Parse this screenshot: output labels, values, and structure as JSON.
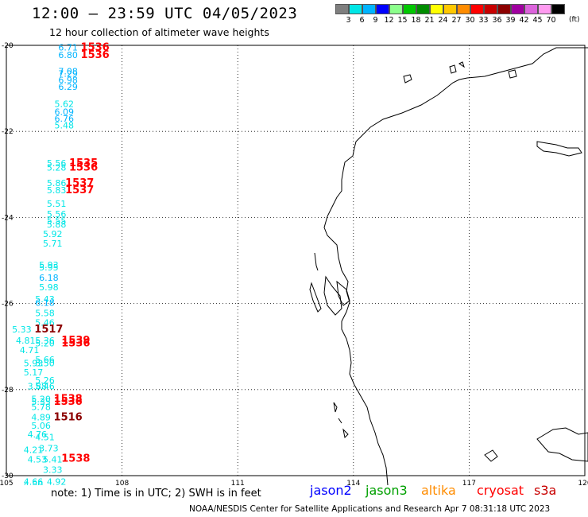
{
  "header": {
    "title": "12:00 — 23:59 UTC 04/05/2023",
    "subtitle": "12 hour collection of altimeter wave heights"
  },
  "legend": {
    "unit": "(ft)",
    "colors": [
      "#7f7f7f",
      "#00e6e6",
      "#00b4ff",
      "#0000ff",
      "#8cff8c",
      "#00c800",
      "#008c00",
      "#ffff00",
      "#ffc800",
      "#ff8c00",
      "#ff0000",
      "#c80000",
      "#8c0000",
      "#a000a0",
      "#dc64dc",
      "#ff9bf0",
      "#000000"
    ],
    "labels": [
      "3",
      "6",
      "9",
      "12",
      "15",
      "18",
      "21",
      "24",
      "27",
      "30",
      "33",
      "36",
      "39",
      "42",
      "45",
      "70"
    ]
  },
  "axes": {
    "lon_labels": [
      "105",
      "108",
      "111",
      "114",
      "117",
      "120"
    ],
    "lat_labels": [
      "-20",
      "-22",
      "-24",
      "-26",
      "-28",
      "-30"
    ]
  },
  "observations": [
    {
      "text": "6.71",
      "lon": 106.6,
      "lat": -20.05,
      "color": "#00b4ff"
    },
    {
      "text": "6.80",
      "lon": 106.6,
      "lat": -20.22,
      "color": "#00b4ff"
    },
    {
      "text": "1536",
      "lon": 107.3,
      "lat": -20.05,
      "color": "#ff0000"
    },
    {
      "text": "1536",
      "lon": 107.3,
      "lat": -20.22,
      "color": "#ff0000"
    },
    {
      "text": "7.08",
      "lon": 106.6,
      "lat": -20.6,
      "color": "#00b4ff"
    },
    {
      "text": "7.29",
      "lon": 106.6,
      "lat": -20.66,
      "color": "#00b4ff"
    },
    {
      "text": "6.98",
      "lon": 106.6,
      "lat": -20.8,
      "color": "#00b4ff"
    },
    {
      "text": "6.29",
      "lon": 106.6,
      "lat": -20.96,
      "color": "#00b4ff"
    },
    {
      "text": "5.62",
      "lon": 106.5,
      "lat": -21.36,
      "color": "#00e6e6"
    },
    {
      "text": "6.09",
      "lon": 106.5,
      "lat": -21.54,
      "color": "#00b4ff"
    },
    {
      "text": "6.76",
      "lon": 106.5,
      "lat": -21.7,
      "color": "#00b4ff"
    },
    {
      "text": "5.48",
      "lon": 106.5,
      "lat": -21.86,
      "color": "#00e6e6"
    },
    {
      "text": "5.56",
      "lon": 106.3,
      "lat": -22.74,
      "color": "#00e6e6"
    },
    {
      "text": "5.28",
      "lon": 106.3,
      "lat": -22.84,
      "color": "#00e6e6"
    },
    {
      "text": "1535",
      "lon": 107.0,
      "lat": -22.74,
      "color": "#ff0000"
    },
    {
      "text": "1536",
      "lon": 107.0,
      "lat": -22.84,
      "color": "#ff0000"
    },
    {
      "text": "5.86",
      "lon": 106.3,
      "lat": -23.2,
      "color": "#00e6e6"
    },
    {
      "text": "5.83",
      "lon": 106.3,
      "lat": -23.36,
      "color": "#00e6e6"
    },
    {
      "text": "1537",
      "lon": 106.9,
      "lat": -23.2,
      "color": "#ff0000"
    },
    {
      "text": "1537",
      "lon": 106.9,
      "lat": -23.36,
      "color": "#ff0000"
    },
    {
      "text": "5.51",
      "lon": 106.3,
      "lat": -23.68,
      "color": "#00e6e6"
    },
    {
      "text": "5.56",
      "lon": 106.3,
      "lat": -23.92,
      "color": "#00e6e6"
    },
    {
      "text": "5.55",
      "lon": 106.3,
      "lat": -24.08,
      "color": "#00e6e6"
    },
    {
      "text": "5.88",
      "lon": 106.3,
      "lat": -24.16,
      "color": "#00e6e6"
    },
    {
      "text": "5.92",
      "lon": 106.2,
      "lat": -24.38,
      "color": "#00e6e6"
    },
    {
      "text": "5.71",
      "lon": 106.2,
      "lat": -24.6,
      "color": "#00e6e6"
    },
    {
      "text": "5.93",
      "lon": 106.1,
      "lat": -25.1,
      "color": "#00e6e6"
    },
    {
      "text": "5.95",
      "lon": 106.1,
      "lat": -25.16,
      "color": "#00e6e6"
    },
    {
      "text": "6.18",
      "lon": 106.1,
      "lat": -25.4,
      "color": "#00b4ff"
    },
    {
      "text": "5.98",
      "lon": 106.1,
      "lat": -25.62,
      "color": "#00e6e6"
    },
    {
      "text": "5.43",
      "lon": 106.0,
      "lat": -25.9,
      "color": "#00e6e6"
    },
    {
      "text": "6.18",
      "lon": 106.0,
      "lat": -25.98,
      "color": "#00b4ff"
    },
    {
      "text": "5.58",
      "lon": 106.0,
      "lat": -26.22,
      "color": "#00e6e6"
    },
    {
      "text": "5.46",
      "lon": 106.0,
      "lat": -26.44,
      "color": "#00e6e6"
    },
    {
      "text": "5.33",
      "lon": 105.4,
      "lat": -26.6,
      "color": "#00e6e6"
    },
    {
      "text": "1517",
      "lon": 106.1,
      "lat": -26.6,
      "color": "#8c0000"
    },
    {
      "text": "4.81",
      "lon": 105.5,
      "lat": -26.86,
      "color": "#00e6e6"
    },
    {
      "text": "5.36",
      "lon": 106.0,
      "lat": -26.86,
      "color": "#00e6e6"
    },
    {
      "text": "5.20",
      "lon": 106.0,
      "lat": -26.92,
      "color": "#00e6e6"
    },
    {
      "text": "1539",
      "lon": 106.8,
      "lat": -26.86,
      "color": "#ff0000"
    },
    {
      "text": "1536",
      "lon": 106.8,
      "lat": -26.92,
      "color": "#ff0000"
    },
    {
      "text": "4.71",
      "lon": 105.6,
      "lat": -27.08,
      "color": "#00e6e6"
    },
    {
      "text": "5.66",
      "lon": 106.0,
      "lat": -27.3,
      "color": "#00e6e6"
    },
    {
      "text": "5.93",
      "lon": 105.7,
      "lat": -27.38,
      "color": "#00e6e6"
    },
    {
      "text": "5.50",
      "lon": 106.0,
      "lat": -27.38,
      "color": "#00e6e6"
    },
    {
      "text": "5.17",
      "lon": 105.7,
      "lat": -27.6,
      "color": "#00e6e6"
    },
    {
      "text": "5.26",
      "lon": 106.0,
      "lat": -27.78,
      "color": "#00e6e6"
    },
    {
      "text": "3.88",
      "lon": 105.8,
      "lat": -27.92,
      "color": "#00e6e6"
    },
    {
      "text": "5.46",
      "lon": 106.0,
      "lat": -27.92,
      "color": "#00e6e6"
    },
    {
      "text": "5.20",
      "lon": 105.9,
      "lat": -28.22,
      "color": "#00e6e6"
    },
    {
      "text": "5.35",
      "lon": 105.9,
      "lat": -28.28,
      "color": "#00e6e6"
    },
    {
      "text": "1538",
      "lon": 106.6,
      "lat": -28.22,
      "color": "#ff0000"
    },
    {
      "text": "1536",
      "lon": 106.6,
      "lat": -28.28,
      "color": "#ff0000"
    },
    {
      "text": "5.78",
      "lon": 105.9,
      "lat": -28.4,
      "color": "#00e6e6"
    },
    {
      "text": "4.89",
      "lon": 105.9,
      "lat": -28.64,
      "color": "#00e6e6"
    },
    {
      "text": "1516",
      "lon": 106.6,
      "lat": -28.64,
      "color": "#8c0000"
    },
    {
      "text": "5.06",
      "lon": 105.9,
      "lat": -28.84,
      "color": "#00e6e6"
    },
    {
      "text": "4.76",
      "lon": 105.8,
      "lat": -29.04,
      "color": "#00e6e6"
    },
    {
      "text": "4.51",
      "lon": 106.0,
      "lat": -29.1,
      "color": "#00e6e6"
    },
    {
      "text": "4.21",
      "lon": 105.7,
      "lat": -29.4,
      "color": "#00e6e6"
    },
    {
      "text": "3.73",
      "lon": 106.1,
      "lat": -29.36,
      "color": "#00e6e6"
    },
    {
      "text": "4.53",
      "lon": 105.8,
      "lat": -29.62,
      "color": "#00e6e6"
    },
    {
      "text": "5.41",
      "lon": 106.2,
      "lat": -29.62,
      "color": "#00e6e6"
    },
    {
      "text": "1538",
      "lon": 106.8,
      "lat": -29.6,
      "color": "#ff0000"
    },
    {
      "text": "3.33",
      "lon": 106.2,
      "lat": -29.86,
      "color": "#00e6e6"
    },
    {
      "text": "4.66",
      "lon": 105.7,
      "lat": -30.14,
      "color": "#00e6e6"
    },
    {
      "text": "4.80",
      "lon": 105.7,
      "lat": -30.2,
      "color": "#00e6e6"
    },
    {
      "text": "4.92",
      "lon": 106.3,
      "lat": -30.14,
      "color": "#00e6e6"
    }
  ],
  "note": "note: 1) Time is in UTC; 2) SWH is in feet",
  "satellites": [
    {
      "name": "jason2",
      "color": "#0000ff"
    },
    {
      "name": "jason3",
      "color": "#00a000"
    },
    {
      "name": "altika",
      "color": "#ff8c00"
    },
    {
      "name": "cryosat",
      "color": "#ff0000"
    },
    {
      "name": "s3a",
      "color": "#c80000"
    }
  ],
  "footer": "NOAA/NESDIS Center for Satellite Applications and Research   Apr  7 08:31:18 UTC 2023"
}
